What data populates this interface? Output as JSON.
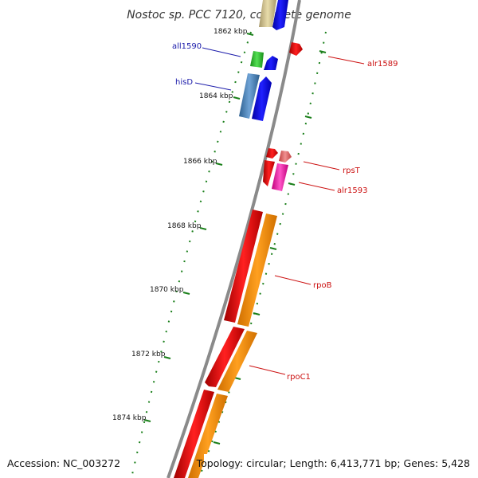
{
  "map": {
    "title": "Nostoc sp. PCC 7120, complete genome",
    "footer_left": "Accession: NC_003272",
    "footer_right": "Topology: circular; Length: 6,413,771 bp; Genes: 5,428",
    "ticks": [
      "1862 kbp",
      "1864 kbp",
      "1866 kbp",
      "1868 kbp",
      "1870 kbp",
      "1872 kbp",
      "1874 kbp"
    ],
    "gene_labels": {
      "all1590": "all1590",
      "hisD": "hisD",
      "alr1589": "alr1589",
      "rpsT": "rpsT",
      "alr1593": "alr1593",
      "rpoB": "rpoB",
      "rpoC1": "rpoC1"
    }
  },
  "colors": {
    "backbone": "#8a8a8a",
    "tick": "#1a7f1a",
    "reverse_label": "#1a1aaa",
    "forward_label": "#cc1111",
    "rpoB_rpoC1_forward": "#ff0000",
    "rpoB_rpoC1_cds": "#ff9900",
    "rpsT_rna": "#ff22aa",
    "hisD_cds": "#4a86c0",
    "all1590_cds": "#33cc33",
    "blue_gene": "#0000ff",
    "top_gene": "#d8c890"
  }
}
